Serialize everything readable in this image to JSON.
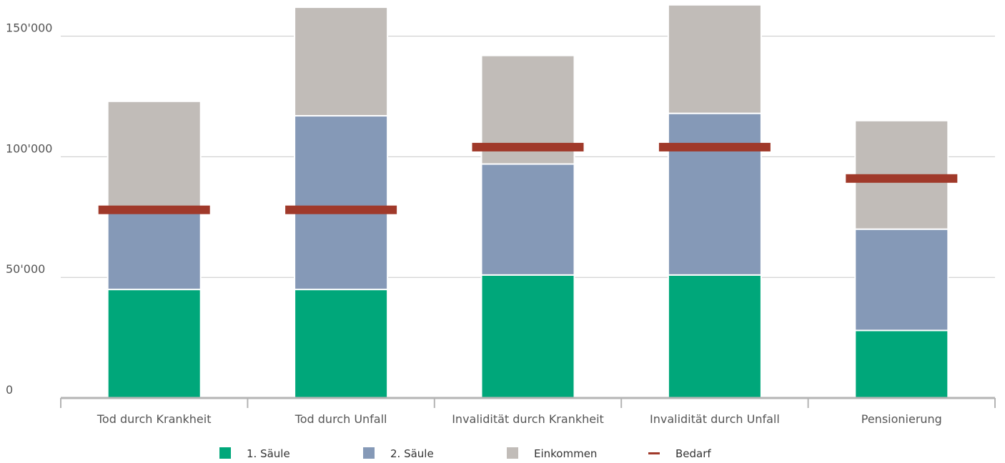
{
  "chart_data": {
    "type": "bar",
    "stacked": true,
    "title": "",
    "xlabel": "",
    "ylabel": "",
    "categories": [
      "Tod durch Krankheit",
      "Tod durch Unfall",
      "Invalidität durch Krankheit",
      "Invalidität durch Unfall",
      "Pensionierung"
    ],
    "series": [
      {
        "name": "1. Säule",
        "color": "#00a77a",
        "values": [
          45000,
          45000,
          51000,
          51000,
          28000
        ]
      },
      {
        "name": "2. Säule",
        "color": "#8599b7",
        "values": [
          32000,
          72000,
          46000,
          67000,
          42000
        ]
      },
      {
        "name": "Einkommen",
        "color": "#c1bcb8",
        "values": [
          46000,
          45000,
          45000,
          45000,
          45000
        ]
      }
    ],
    "need": {
      "name": "Bedarf",
      "color": "#a0392a",
      "values": [
        78000,
        78000,
        104000,
        104000,
        91000
      ]
    },
    "ylim": [
      0,
      165000
    ],
    "yticks": [
      0,
      50000,
      100000,
      150000
    ],
    "ytick_labels": [
      "0",
      "50'000",
      "100'000",
      "150'000"
    ],
    "grid": true,
    "legend_position": "bottom"
  }
}
